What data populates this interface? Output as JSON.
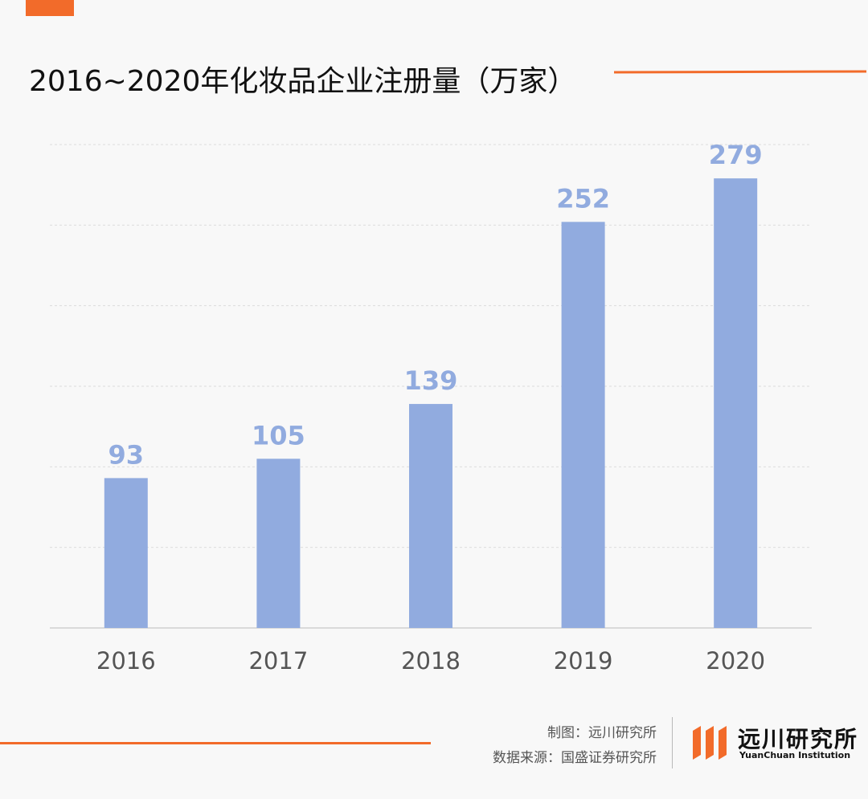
{
  "title": "2016~2020年化妆品企业注册量（万家）",
  "colors": {
    "accent": "#f26b2a",
    "bar": "#91abdf",
    "value_label": "#91abdf",
    "tick": "#555555",
    "grid": "#dcdcdc"
  },
  "chart_data": {
    "type": "bar",
    "categories": [
      "2016",
      "2017",
      "2018",
      "2019",
      "2020"
    ],
    "values": [
      93,
      105,
      139,
      252,
      279
    ],
    "ylim": [
      0,
      300
    ],
    "grid": true,
    "data_labels": true
  },
  "footer": {
    "credit_line1": "制图：远川研究所",
    "credit_line2": "数据来源：国盛证券研究所",
    "logo_name_cn": "远川研究所",
    "logo_name_en": "YuanChuan Institution"
  }
}
